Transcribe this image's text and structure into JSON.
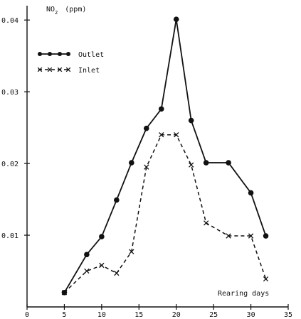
{
  "chart_data": {
    "type": "line",
    "title": "",
    "ylabel_main": "NO",
    "ylabel_sub": "2",
    "ylabel_unit": "(ppm)",
    "xlabel": "Rearing days",
    "xlim": [
      0,
      35
    ],
    "ylim": [
      0,
      0.042
    ],
    "x_ticks": [
      0,
      5,
      10,
      15,
      20,
      25,
      30,
      35
    ],
    "x_tick_labels": [
      "0",
      "5",
      "10",
      "15",
      "20",
      "25",
      "30",
      "35"
    ],
    "y_ticks": [
      0.01,
      0.02,
      0.03,
      0.04
    ],
    "y_tick_labels": [
      "0.01",
      "0.02",
      "0.03",
      "0.04"
    ],
    "legend_position": "top-left",
    "series": [
      {
        "name": "Outlet",
        "style": "solid",
        "marker": "dot",
        "x": [
          5,
          8,
          10,
          12,
          14,
          16,
          18,
          20,
          22,
          24,
          27,
          30,
          32
        ],
        "y": [
          0.002,
          0.0073,
          0.0098,
          0.0149,
          0.0201,
          0.0249,
          0.0276,
          0.0401,
          0.026,
          0.0201,
          0.0201,
          0.0159,
          0.0099
        ]
      },
      {
        "name": "Inlet",
        "style": "dashed",
        "marker": "x",
        "x": [
          5,
          8,
          10,
          12,
          14,
          16,
          18,
          20,
          22,
          24,
          27,
          30,
          32
        ],
        "y": [
          0.002,
          0.005,
          0.0058,
          0.0047,
          0.0077,
          0.0195,
          0.024,
          0.024,
          0.0198,
          0.0117,
          0.0099,
          0.0099,
          0.0039
        ]
      }
    ]
  }
}
